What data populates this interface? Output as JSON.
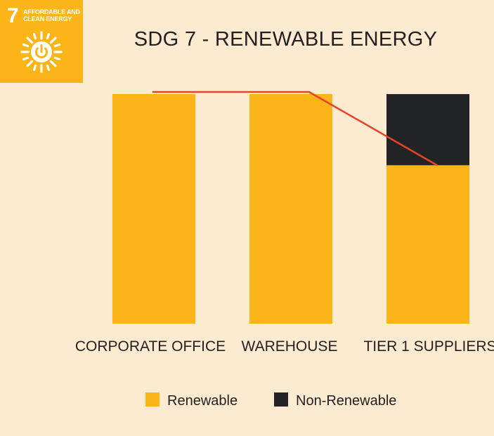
{
  "badge": {
    "number": "7",
    "text": "AFFORDABLE AND CLEAN ENERGY",
    "icon": "sun-power-icon",
    "color": "#fcb518"
  },
  "chart_data": {
    "type": "bar",
    "stacked": true,
    "title": "SDG 7 - RENEWABLE ENERGY",
    "xlabel": "",
    "ylabel": "",
    "categories": [
      "CORPORATE OFFICE",
      "WAREHOUSE",
      "TIER 1 SUPPLIERS"
    ],
    "series": [
      {
        "name": "Renewable",
        "color": "#fcb518",
        "values": [
          100,
          100,
          69
        ]
      },
      {
        "name": "Non-Renewable",
        "color": "#212324",
        "values": [
          0,
          0,
          31
        ]
      }
    ],
    "trend_line": {
      "color": "#e5432a",
      "values": [
        100,
        100,
        69
      ]
    },
    "ylim": [
      0,
      100
    ],
    "grid": false,
    "legend_position": "bottom"
  }
}
